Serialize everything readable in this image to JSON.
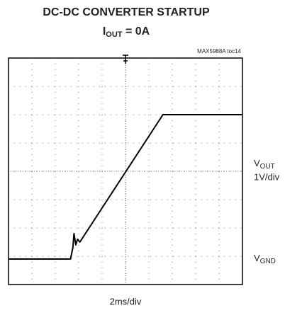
{
  "chart_data": {
    "type": "line",
    "title": "DC-DC CONVERTER STARTUP",
    "subtitle": [
      "I",
      "OUT",
      " = 0A"
    ],
    "note": "MAX5988A toc14",
    "trace_label": [
      "V",
      "OUT"
    ],
    "trace_scale": "1V/div",
    "ground_label": [
      "V",
      "GND"
    ],
    "x_label": "2ms/div",
    "x": [
      0,
      5.3,
      5.5,
      5.6,
      5.75,
      5.9,
      6.1,
      13.2,
      20
    ],
    "values": [
      0,
      0,
      0.4,
      0.9,
      0.5,
      0.7,
      0.6,
      5.1,
      5.1
    ],
    "color": "#000000",
    "xlim": [
      0,
      20
    ],
    "ylim": [
      -0.9,
      7.1
    ],
    "grid": true
  }
}
